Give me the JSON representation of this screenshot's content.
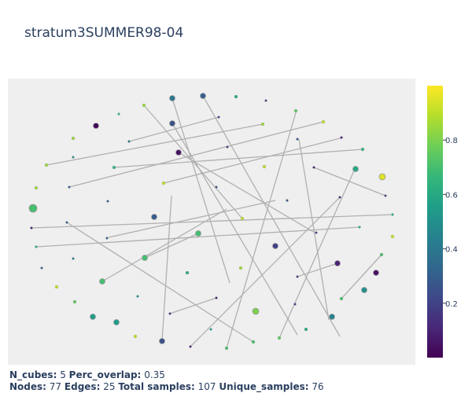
{
  "title": "stratum3SUMMER98-04",
  "colorbar": {
    "ticks": [
      "0.2",
      "0.4",
      "0.6",
      "0.8"
    ],
    "tick_values": [
      0.2,
      0.4,
      0.6,
      0.8
    ],
    "range": [
      0.0,
      1.0
    ],
    "colorscale": "viridis",
    "colors": [
      "#440154",
      "#482878",
      "#3e4989",
      "#31688e",
      "#26828e",
      "#1f9e89",
      "#35b779",
      "#6ece58",
      "#b5de2b",
      "#fde725"
    ]
  },
  "footer": {
    "n_cubes_label": "N_cubes:",
    "n_cubes_value": "5",
    "perc_overlap_label": "Perc_overlap:",
    "perc_overlap_value": "0.35",
    "nodes_label": "Nodes:",
    "nodes_value": "77",
    "edges_label": "Edges:",
    "edges_value": "25",
    "total_samples_label": "Total samples:",
    "total_samples_value": "107",
    "unique_samples_label": "Unique_samples:",
    "unique_samples_value": "76"
  },
  "style": {
    "plot_bg": "#efefef",
    "edge_color": "#b0b0b0",
    "text_color": "#2a3f5f"
  }
}
